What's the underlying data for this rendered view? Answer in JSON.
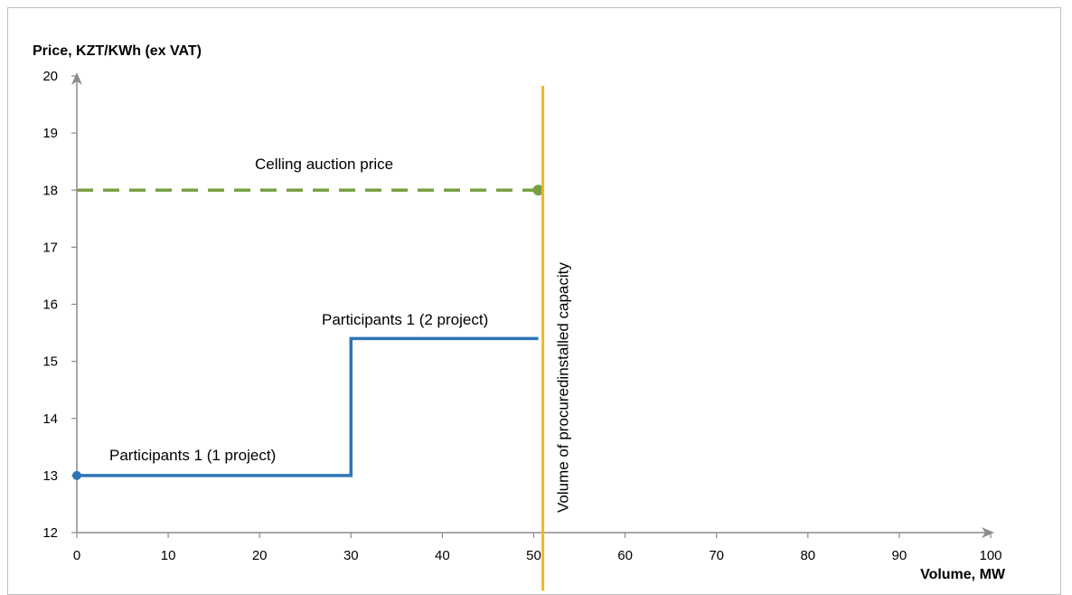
{
  "chart_data": {
    "type": "line",
    "ylabel": "Price, KZT/KWh (ex VAT)",
    "xlabel": "Volume, MW",
    "xlim": [
      0,
      100
    ],
    "ylim": [
      12,
      20
    ],
    "x_ticks": [
      0,
      10,
      20,
      30,
      40,
      50,
      60,
      70,
      80,
      90,
      100
    ],
    "y_ticks": [
      12,
      13,
      14,
      15,
      16,
      17,
      18,
      19,
      20
    ],
    "grid": false,
    "series": [
      {
        "name": "Participants 1 (1 project)",
        "style": "solid-step",
        "color": "#2e75b6",
        "points": [
          [
            0,
            13
          ],
          [
            30,
            13
          ]
        ]
      },
      {
        "name": "Participants 1 (2 project)",
        "style": "solid-step",
        "color": "#2e75b6",
        "points": [
          [
            30,
            15.4
          ],
          [
            50.5,
            15.4
          ]
        ]
      },
      {
        "name": "Celling auction price",
        "style": "dashed",
        "color": "#77a043",
        "points": [
          [
            0,
            18
          ],
          [
            50.5,
            18
          ]
        ]
      }
    ],
    "vertical_line": {
      "x": 51,
      "color": "#f5b51e",
      "label": "Volume of procuredinstalled capacity"
    }
  }
}
